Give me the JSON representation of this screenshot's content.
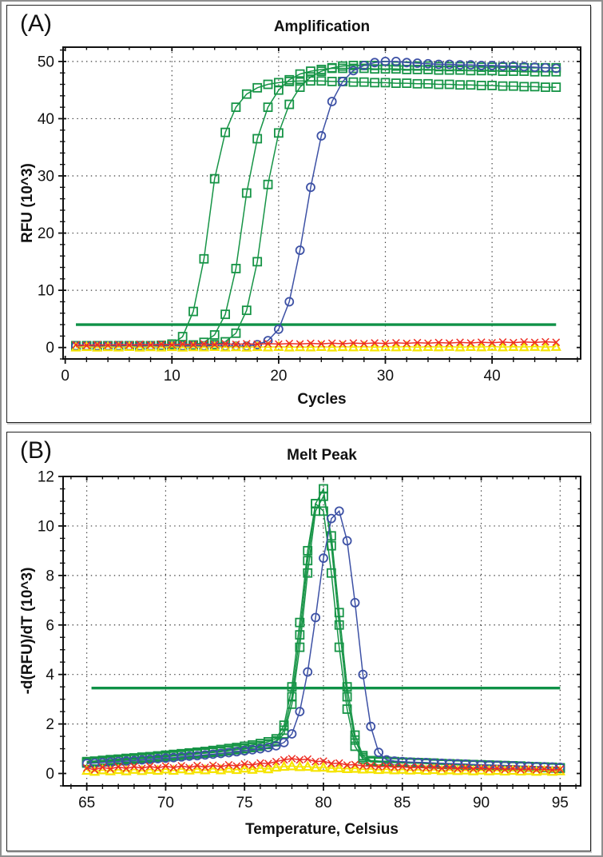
{
  "figure": {
    "description": "Two-panel real-time PCR figure"
  },
  "chart_data": {
    "panels": [
      {
        "id": "amplification",
        "type": "line",
        "label": "(A)",
        "title": "Amplification",
        "xlabel": "Cycles",
        "ylabel": "RFU (10^3)",
        "xlim": [
          -0.2,
          48.3
        ],
        "ylim": [
          -2,
          52.5
        ],
        "xticks": [
          0,
          10,
          20,
          30,
          40
        ],
        "yticks": [
          0,
          10,
          20,
          30,
          40,
          50
        ],
        "xminor_step": 2,
        "yminor_step": 2,
        "xgrid": [
          10,
          20,
          30,
          40
        ],
        "ygrid": [
          10,
          20,
          30,
          40,
          50
        ],
        "grid_style": "dotted",
        "legend": "none",
        "threshold": {
          "y": 4.0,
          "x1": 1,
          "x2": 46,
          "color": "#0f9147"
        },
        "box": {
          "l": 70,
          "t": 52,
          "r": 718,
          "b": 442
        },
        "series": [
          {
            "name": "green-squares-1",
            "marker": "square",
            "color": "#169446",
            "x0": 1,
            "dx": 1,
            "values": [
              0.3,
              0.3,
              0.3,
              0.3,
              0.3,
              0.3,
              0.3,
              0.32,
              0.38,
              0.6,
              1.9,
              6.3,
              15.5,
              29.5,
              37.6,
              42,
              44.3,
              45.4,
              46,
              46.3,
              46.5,
              46.6,
              46.6,
              46.6,
              46.5,
              46.5,
              46.4,
              46.4,
              46.3,
              46.3,
              46.2,
              46.2,
              46.1,
              46.1,
              46,
              46,
              45.9,
              45.9,
              45.8,
              45.8,
              45.7,
              45.7,
              45.6,
              45.6,
              45.5,
              45.5
            ]
          },
          {
            "name": "green-squares-2",
            "marker": "square",
            "color": "#169446",
            "x0": 1,
            "dx": 1,
            "values": [
              0.3,
              0.3,
              0.3,
              0.3,
              0.3,
              0.3,
              0.3,
              0.3,
              0.3,
              0.3,
              0.3,
              0.45,
              0.9,
              2.2,
              5.8,
              13.8,
              27,
              36.5,
              42,
              45,
              46.8,
              47.8,
              48.3,
              48.6,
              48.8,
              48.8,
              48.8,
              48.8,
              48.7,
              48.7,
              48.7,
              48.6,
              48.6,
              48.6,
              48.5,
              48.5,
              48.5,
              48.4,
              48.4,
              48.4,
              48.3,
              48.3,
              48.3,
              48.2,
              48.2,
              48.2
            ]
          },
          {
            "name": "green-squares-3",
            "marker": "square",
            "color": "#169446",
            "x0": 1,
            "dx": 1,
            "values": [
              0.3,
              0.3,
              0.3,
              0.3,
              0.3,
              0.3,
              0.3,
              0.3,
              0.3,
              0.3,
              0.3,
              0.3,
              0.3,
              0.5,
              1,
              2.5,
              6.5,
              15,
              28.5,
              37.5,
              42.5,
              45.5,
              47.3,
              48.3,
              48.9,
              49.2,
              49.3,
              49.3,
              49.3,
              49.3,
              49.2,
              49.2,
              49.2,
              49.2,
              49.1,
              49.1,
              49.1,
              49.1,
              49,
              49,
              49,
              49,
              48.9,
              48.9,
              48.9,
              48.9
            ]
          },
          {
            "name": "blue-circles",
            "marker": "circle",
            "color": "#3d51a5",
            "x0": 1,
            "dx": 1,
            "values": [
              0.25,
              0.25,
              0.25,
              0.25,
              0.25,
              0.25,
              0.25,
              0.25,
              0.25,
              0.25,
              0.25,
              0.25,
              0.25,
              0.25,
              0.25,
              0.25,
              0.25,
              0.5,
              1.2,
              3.2,
              8,
              17,
              28,
              37,
              43,
              46.5,
              48.4,
              49.3,
              49.8,
              50,
              50,
              49.8,
              49.7,
              49.6,
              49.5,
              49.5,
              49.4,
              49.4,
              49.3,
              49.3,
              49.2,
              49.2,
              49.1,
              49,
              48.9,
              48.8
            ]
          },
          {
            "name": "yellow-triangles",
            "marker": "triangle",
            "color": "#f5e400",
            "x0": 1,
            "dx": 1,
            "values": [
              0.05,
              0.12,
              0.03,
              0.1,
              0.05,
              0.13,
              0.04,
              0.11,
              0.05,
              0.12,
              0.03,
              0.1,
              0.06,
              0.13,
              0.05,
              0.11,
              0.04,
              0.12,
              0.06,
              0.13,
              0.05,
              0.1,
              0.07,
              0.14,
              0.05,
              0.12,
              0.08,
              0.14,
              0.06,
              0.12,
              0.08,
              0.15,
              0.07,
              0.13,
              0.09,
              0.15,
              0.07,
              0.13,
              0.09,
              0.16,
              0.08,
              0.14,
              0.1,
              0.16,
              0.08,
              0.15
            ]
          },
          {
            "name": "red-x",
            "marker": "x",
            "color": "#ee2e24",
            "x0": 1,
            "dx": 1,
            "values": [
              0.45,
              0.36,
              0.5,
              0.4,
              0.53,
              0.43,
              0.55,
              0.45,
              0.57,
              0.47,
              0.59,
              0.5,
              0.62,
              0.52,
              0.64,
              0.55,
              0.66,
              0.57,
              0.68,
              0.6,
              0.7,
              0.62,
              0.73,
              0.64,
              0.75,
              0.66,
              0.78,
              0.68,
              0.8,
              0.7,
              0.82,
              0.73,
              0.85,
              0.75,
              0.87,
              0.78,
              0.9,
              0.8,
              0.92,
              0.82,
              0.95,
              0.85,
              0.98,
              0.88,
              1,
              0.9
            ]
          }
        ]
      },
      {
        "id": "melt-peak",
        "type": "line",
        "label": "(B)",
        "title": "Melt Peak",
        "xlabel": "Temperature, Celsius",
        "ylabel": "-d(RFU)/dT (10^3)",
        "xlim": [
          63.5,
          96.3
        ],
        "ylim": [
          -0.5,
          12
        ],
        "xticks": [
          65,
          70,
          75,
          80,
          85,
          90,
          95
        ],
        "yticks": [
          0,
          2,
          4,
          6,
          8,
          10,
          12
        ],
        "xminor_step": 1,
        "yminor_step": 0.5,
        "xgrid": [
          65,
          70,
          75,
          80,
          85,
          90,
          95
        ],
        "ygrid": [
          2,
          4,
          6,
          8,
          10
        ],
        "grid_style": "dotted",
        "legend": "none",
        "threshold": {
          "y": 3.45,
          "x1": 65.3,
          "x2": 95,
          "color": "#0f9147"
        },
        "box": {
          "l": 70,
          "t": 55,
          "r": 718,
          "b": 442
        },
        "series": [
          {
            "name": "green-squares-1",
            "marker": "square",
            "color": "#169446",
            "x0": 65,
            "dx": 0.5,
            "values": [
              0.45,
              0.48,
              0.5,
              0.53,
              0.55,
              0.58,
              0.6,
              0.63,
              0.65,
              0.68,
              0.7,
              0.73,
              0.76,
              0.79,
              0.82,
              0.85,
              0.88,
              0.91,
              0.95,
              0.99,
              1.03,
              1.08,
              1.13,
              1.2,
              1.32,
              1.75,
              3.1,
              5.6,
              8.6,
              10.9,
              11.5,
              9.2,
              6,
              3.1,
              1.35,
              0.65,
              0.5,
              0.48,
              0.47,
              0.46,
              0.45,
              0.44,
              0.42,
              0.41,
              0.4,
              0.39,
              0.38,
              0.37,
              0.36,
              0.35,
              0.34,
              0.33,
              0.32,
              0.31,
              0.3,
              0.28,
              0.27,
              0.26,
              0.25,
              0.23,
              0.22
            ]
          },
          {
            "name": "green-squares-2",
            "marker": "square",
            "color": "#169446",
            "x0": 65,
            "dx": 0.5,
            "values": [
              0.42,
              0.45,
              0.47,
              0.5,
              0.52,
              0.55,
              0.57,
              0.6,
              0.62,
              0.65,
              0.67,
              0.7,
              0.73,
              0.76,
              0.79,
              0.82,
              0.85,
              0.88,
              0.92,
              0.96,
              1,
              1.05,
              1.1,
              1.17,
              1.28,
              1.6,
              2.8,
              5.1,
              8.1,
              10.6,
              11.2,
              9.6,
              6.5,
              3.5,
              1.55,
              0.72,
              0.52,
              0.5,
              0.49,
              0.48,
              0.46,
              0.45,
              0.44,
              0.43,
              0.42,
              0.4,
              0.39,
              0.38,
              0.37,
              0.36,
              0.35,
              0.34,
              0.33,
              0.32,
              0.31,
              0.3,
              0.28,
              0.27,
              0.26,
              0.25,
              0.23
            ]
          },
          {
            "name": "green-squares-3",
            "marker": "square",
            "color": "#169446",
            "x0": 65,
            "dx": 0.5,
            "values": [
              0.48,
              0.5,
              0.53,
              0.56,
              0.58,
              0.61,
              0.63,
              0.66,
              0.68,
              0.71,
              0.74,
              0.77,
              0.8,
              0.83,
              0.86,
              0.89,
              0.93,
              0.97,
              1.01,
              1.05,
              1.1,
              1.15,
              1.21,
              1.28,
              1.4,
              1.95,
              3.5,
              6.1,
              9,
              10.9,
              10.6,
              8.1,
              5.1,
              2.6,
              1.1,
              0.58,
              0.47,
              0.46,
              0.45,
              0.44,
              0.43,
              0.42,
              0.41,
              0.4,
              0.38,
              0.37,
              0.36,
              0.35,
              0.34,
              0.33,
              0.32,
              0.31,
              0.3,
              0.29,
              0.28,
              0.27,
              0.26,
              0.25,
              0.24,
              0.22,
              0.21
            ]
          },
          {
            "name": "blue-circles",
            "marker": "circle",
            "color": "#3d51a5",
            "x0": 65,
            "dx": 0.5,
            "values": [
              0.4,
              0.42,
              0.44,
              0.46,
              0.48,
              0.5,
              0.52,
              0.55,
              0.57,
              0.6,
              0.62,
              0.64,
              0.67,
              0.7,
              0.72,
              0.75,
              0.78,
              0.81,
              0.84,
              0.88,
              0.92,
              0.96,
              1,
              1.05,
              1.12,
              1.25,
              1.6,
              2.5,
              4.1,
              6.3,
              8.7,
              10.3,
              10.6,
              9.4,
              6.9,
              4,
              1.9,
              0.85,
              0.55,
              0.5,
              0.48,
              0.46,
              0.45,
              0.44,
              0.42,
              0.41,
              0.4,
              0.39,
              0.38,
              0.36,
              0.35,
              0.34,
              0.33,
              0.32,
              0.31,
              0.3,
              0.29,
              0.28,
              0.27,
              0.26,
              0.25
            ]
          },
          {
            "name": "yellow-triangles",
            "marker": "triangle",
            "color": "#f5e400",
            "x0": 65,
            "dx": 0.5,
            "values": [
              0.12,
              0.08,
              0.14,
              0.1,
              0.15,
              0.1,
              0.16,
              0.11,
              0.16,
              0.12,
              0.17,
              0.12,
              0.18,
              0.13,
              0.18,
              0.14,
              0.19,
              0.14,
              0.2,
              0.15,
              0.21,
              0.16,
              0.22,
              0.18,
              0.25,
              0.28,
              0.3,
              0.27,
              0.28,
              0.24,
              0.25,
              0.21,
              0.22,
              0.19,
              0.2,
              0.17,
              0.18,
              0.15,
              0.17,
              0.14,
              0.16,
              0.13,
              0.15,
              0.12,
              0.15,
              0.11,
              0.14,
              0.11,
              0.13,
              0.1,
              0.13,
              0.1,
              0.12,
              0.09,
              0.12,
              0.09,
              0.11,
              0.08,
              0.11,
              0.08,
              0.1
            ]
          },
          {
            "name": "red-x",
            "marker": "x",
            "color": "#ee2e24",
            "x0": 65,
            "dx": 0.5,
            "values": [
              0.22,
              0.15,
              0.25,
              0.18,
              0.27,
              0.2,
              0.28,
              0.21,
              0.29,
              0.22,
              0.3,
              0.23,
              0.31,
              0.24,
              0.32,
              0.25,
              0.33,
              0.27,
              0.35,
              0.3,
              0.38,
              0.34,
              0.42,
              0.4,
              0.48,
              0.55,
              0.6,
              0.55,
              0.58,
              0.48,
              0.5,
              0.4,
              0.42,
              0.34,
              0.36,
              0.3,
              0.32,
              0.27,
              0.3,
              0.25,
              0.28,
              0.23,
              0.26,
              0.22,
              0.25,
              0.2,
              0.24,
              0.19,
              0.23,
              0.18,
              0.22,
              0.17,
              0.21,
              0.16,
              0.2,
              0.15,
              0.19,
              0.15,
              0.18,
              0.14,
              0.17
            ]
          }
        ]
      }
    ]
  }
}
